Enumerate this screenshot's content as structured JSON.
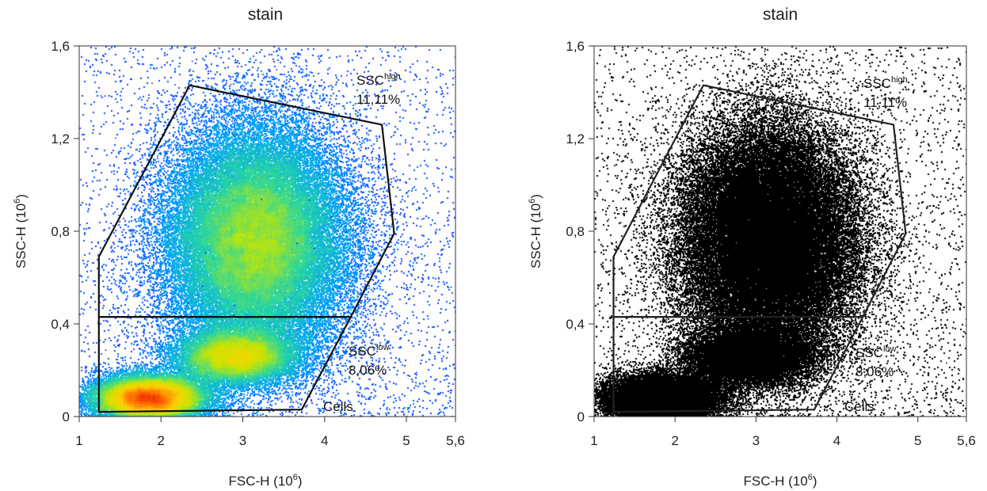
{
  "chart_data": [
    {
      "type": "scatter",
      "title": "stain",
      "rendering": "density",
      "density_colors": [
        "#1a1aff",
        "#00a0ff",
        "#28d7a0",
        "#c8e600",
        "#ffd200",
        "#ff6400",
        "#e60000"
      ],
      "xlabel": {
        "text": "FSC-H (10",
        "sup": "6",
        "close": ")"
      },
      "ylabel": {
        "text": "SSC-H (10",
        "sup": "6",
        "close": ")"
      },
      "xlim": [
        1,
        5.6
      ],
      "ylim": [
        0,
        1.6
      ],
      "xticks": [
        1,
        2,
        3,
        4,
        5,
        5.6
      ],
      "xtick_labels": [
        "1",
        "2",
        "3",
        "4",
        "5",
        "5,6"
      ],
      "yticks": [
        0,
        0.4,
        0.8,
        1.2,
        1.6
      ],
      "ytick_labels": [
        "0",
        "0,4",
        "0,8",
        "1,2",
        "1,6"
      ],
      "populations": [
        {
          "cx": 3.15,
          "cy": 0.76,
          "sx": 0.55,
          "sy": 0.25,
          "weight": 0.6
        },
        {
          "cx": 2.9,
          "cy": 0.26,
          "sx": 0.38,
          "sy": 0.06,
          "weight": 0.15
        },
        {
          "cx": 1.85,
          "cy": 0.08,
          "sx": 0.35,
          "sy": 0.05,
          "weight": 0.25
        }
      ],
      "gates": [
        {
          "name": "SSC",
          "sup": "high",
          "percent": "11,11%",
          "vertices": [
            [
              1.24,
              0.69
            ],
            [
              2.35,
              1.43
            ],
            [
              4.7,
              1.26
            ],
            [
              4.85,
              0.79
            ],
            [
              4.32,
              0.43
            ],
            [
              1.24,
              0.43
            ]
          ]
        },
        {
          "name": "SSC",
          "sup": "low",
          "percent": "8,06%",
          "vertices": [
            [
              1.24,
              0.43
            ],
            [
              4.32,
              0.43
            ],
            [
              3.72,
              0.03
            ],
            [
              1.24,
              0.02
            ]
          ]
        }
      ],
      "region_label": "Cells"
    },
    {
      "type": "scatter",
      "title": "stain",
      "rendering": "monochrome",
      "point_color": "#000000",
      "xlabel": {
        "text": "FSC-H (10",
        "sup": "6",
        "close": ")"
      },
      "ylabel": {
        "text": "SSC-H (10",
        "sup": "6",
        "close": ")"
      },
      "xlim": [
        1,
        5.6
      ],
      "ylim": [
        0,
        1.6
      ],
      "xticks": [
        1,
        2,
        3,
        4,
        5,
        5.6
      ],
      "xtick_labels": [
        "1",
        "2",
        "3",
        "4",
        "5",
        "5,6"
      ],
      "yticks": [
        0,
        0.4,
        0.8,
        1.2,
        1.6
      ],
      "ytick_labels": [
        "0",
        "0,4",
        "0,8",
        "1,2",
        "1,6"
      ],
      "populations": [
        {
          "cx": 3.15,
          "cy": 0.76,
          "sx": 0.55,
          "sy": 0.25,
          "weight": 0.6
        },
        {
          "cx": 2.9,
          "cy": 0.26,
          "sx": 0.38,
          "sy": 0.06,
          "weight": 0.15
        },
        {
          "cx": 1.85,
          "cy": 0.08,
          "sx": 0.35,
          "sy": 0.05,
          "weight": 0.25
        }
      ],
      "gates": [
        {
          "name": "SSC",
          "sup": "high",
          "percent": "11,11%",
          "vertices": [
            [
              1.24,
              0.69
            ],
            [
              2.35,
              1.43
            ],
            [
              4.7,
              1.26
            ],
            [
              4.85,
              0.79
            ],
            [
              4.32,
              0.43
            ],
            [
              1.24,
              0.43
            ]
          ]
        },
        {
          "name": "SSC",
          "sup": "low",
          "percent": "8,06%",
          "vertices": [
            [
              1.24,
              0.43
            ],
            [
              4.32,
              0.43
            ],
            [
              3.72,
              0.03
            ],
            [
              1.24,
              0.02
            ]
          ]
        }
      ],
      "region_label": "Cells"
    }
  ]
}
